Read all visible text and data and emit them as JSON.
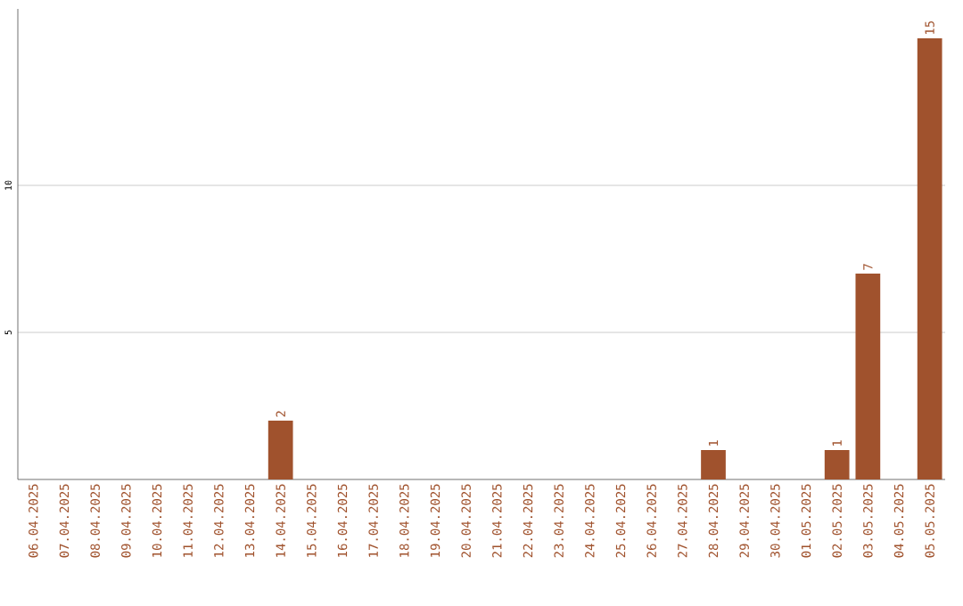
{
  "chart_data": {
    "type": "bar",
    "categories": [
      "06.04.2025",
      "07.04.2025",
      "08.04.2025",
      "09.04.2025",
      "10.04.2025",
      "11.04.2025",
      "12.04.2025",
      "13.04.2025",
      "14.04.2025",
      "15.04.2025",
      "16.04.2025",
      "17.04.2025",
      "18.04.2025",
      "19.04.2025",
      "20.04.2025",
      "21.04.2025",
      "22.04.2025",
      "23.04.2025",
      "24.04.2025",
      "25.04.2025",
      "26.04.2025",
      "27.04.2025",
      "28.04.2025",
      "29.04.2025",
      "30.04.2025",
      "01.05.2025",
      "02.05.2025",
      "03.05.2025",
      "04.05.2025",
      "05.05.2025"
    ],
    "values": [
      0,
      0,
      0,
      0,
      0,
      0,
      0,
      0,
      2,
      0,
      0,
      0,
      0,
      0,
      0,
      0,
      0,
      0,
      0,
      0,
      0,
      0,
      1,
      0,
      0,
      0,
      1,
      7,
      0,
      15
    ],
    "value_labels": [
      null,
      null,
      null,
      null,
      null,
      null,
      null,
      null,
      "2",
      null,
      null,
      null,
      null,
      null,
      null,
      null,
      null,
      null,
      null,
      null,
      null,
      null,
      "1",
      null,
      null,
      null,
      "1",
      "7",
      null,
      "15"
    ],
    "color": "#a0522d",
    "ylim": [
      0,
      16
    ],
    "yticks": [
      5,
      10
    ],
    "grid": "y"
  }
}
